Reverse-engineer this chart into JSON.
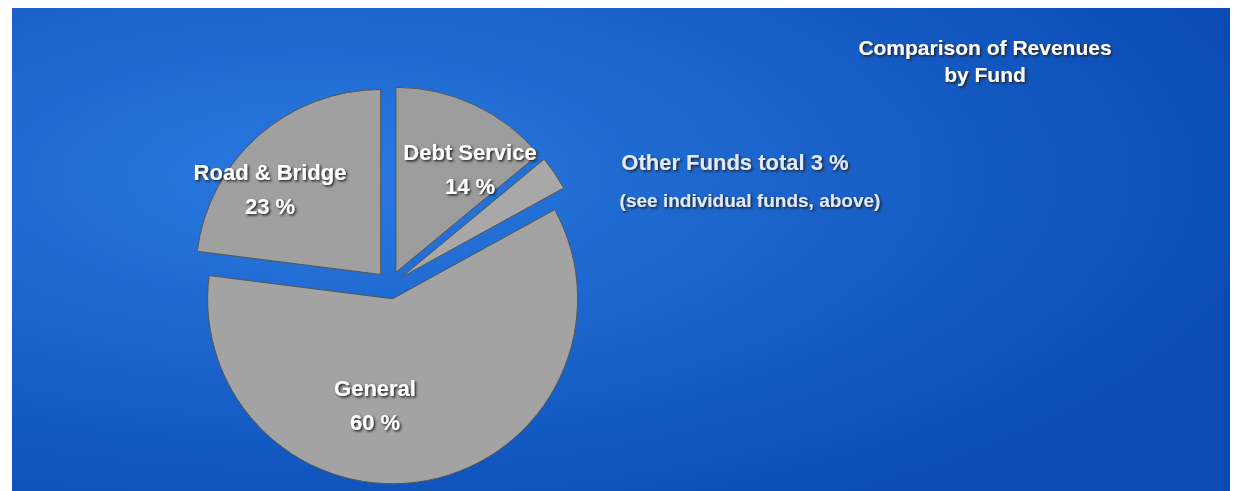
{
  "chart_data": {
    "type": "pie",
    "title": "Comparison of Revenues by Fund",
    "categories": [
      "Debt Service",
      "Other Funds total",
      "General",
      "Road & Bridge"
    ],
    "values": [
      14,
      3,
      60,
      23
    ],
    "value_labels": [
      "14 %",
      "3 %",
      "60 %",
      "23 %"
    ],
    "colors": [
      "#9c9c9c",
      "#a8a8a8",
      "#a3a3a3",
      "#a0a0a0"
    ],
    "annotations": [
      "(see individual funds, above)"
    ]
  }
}
